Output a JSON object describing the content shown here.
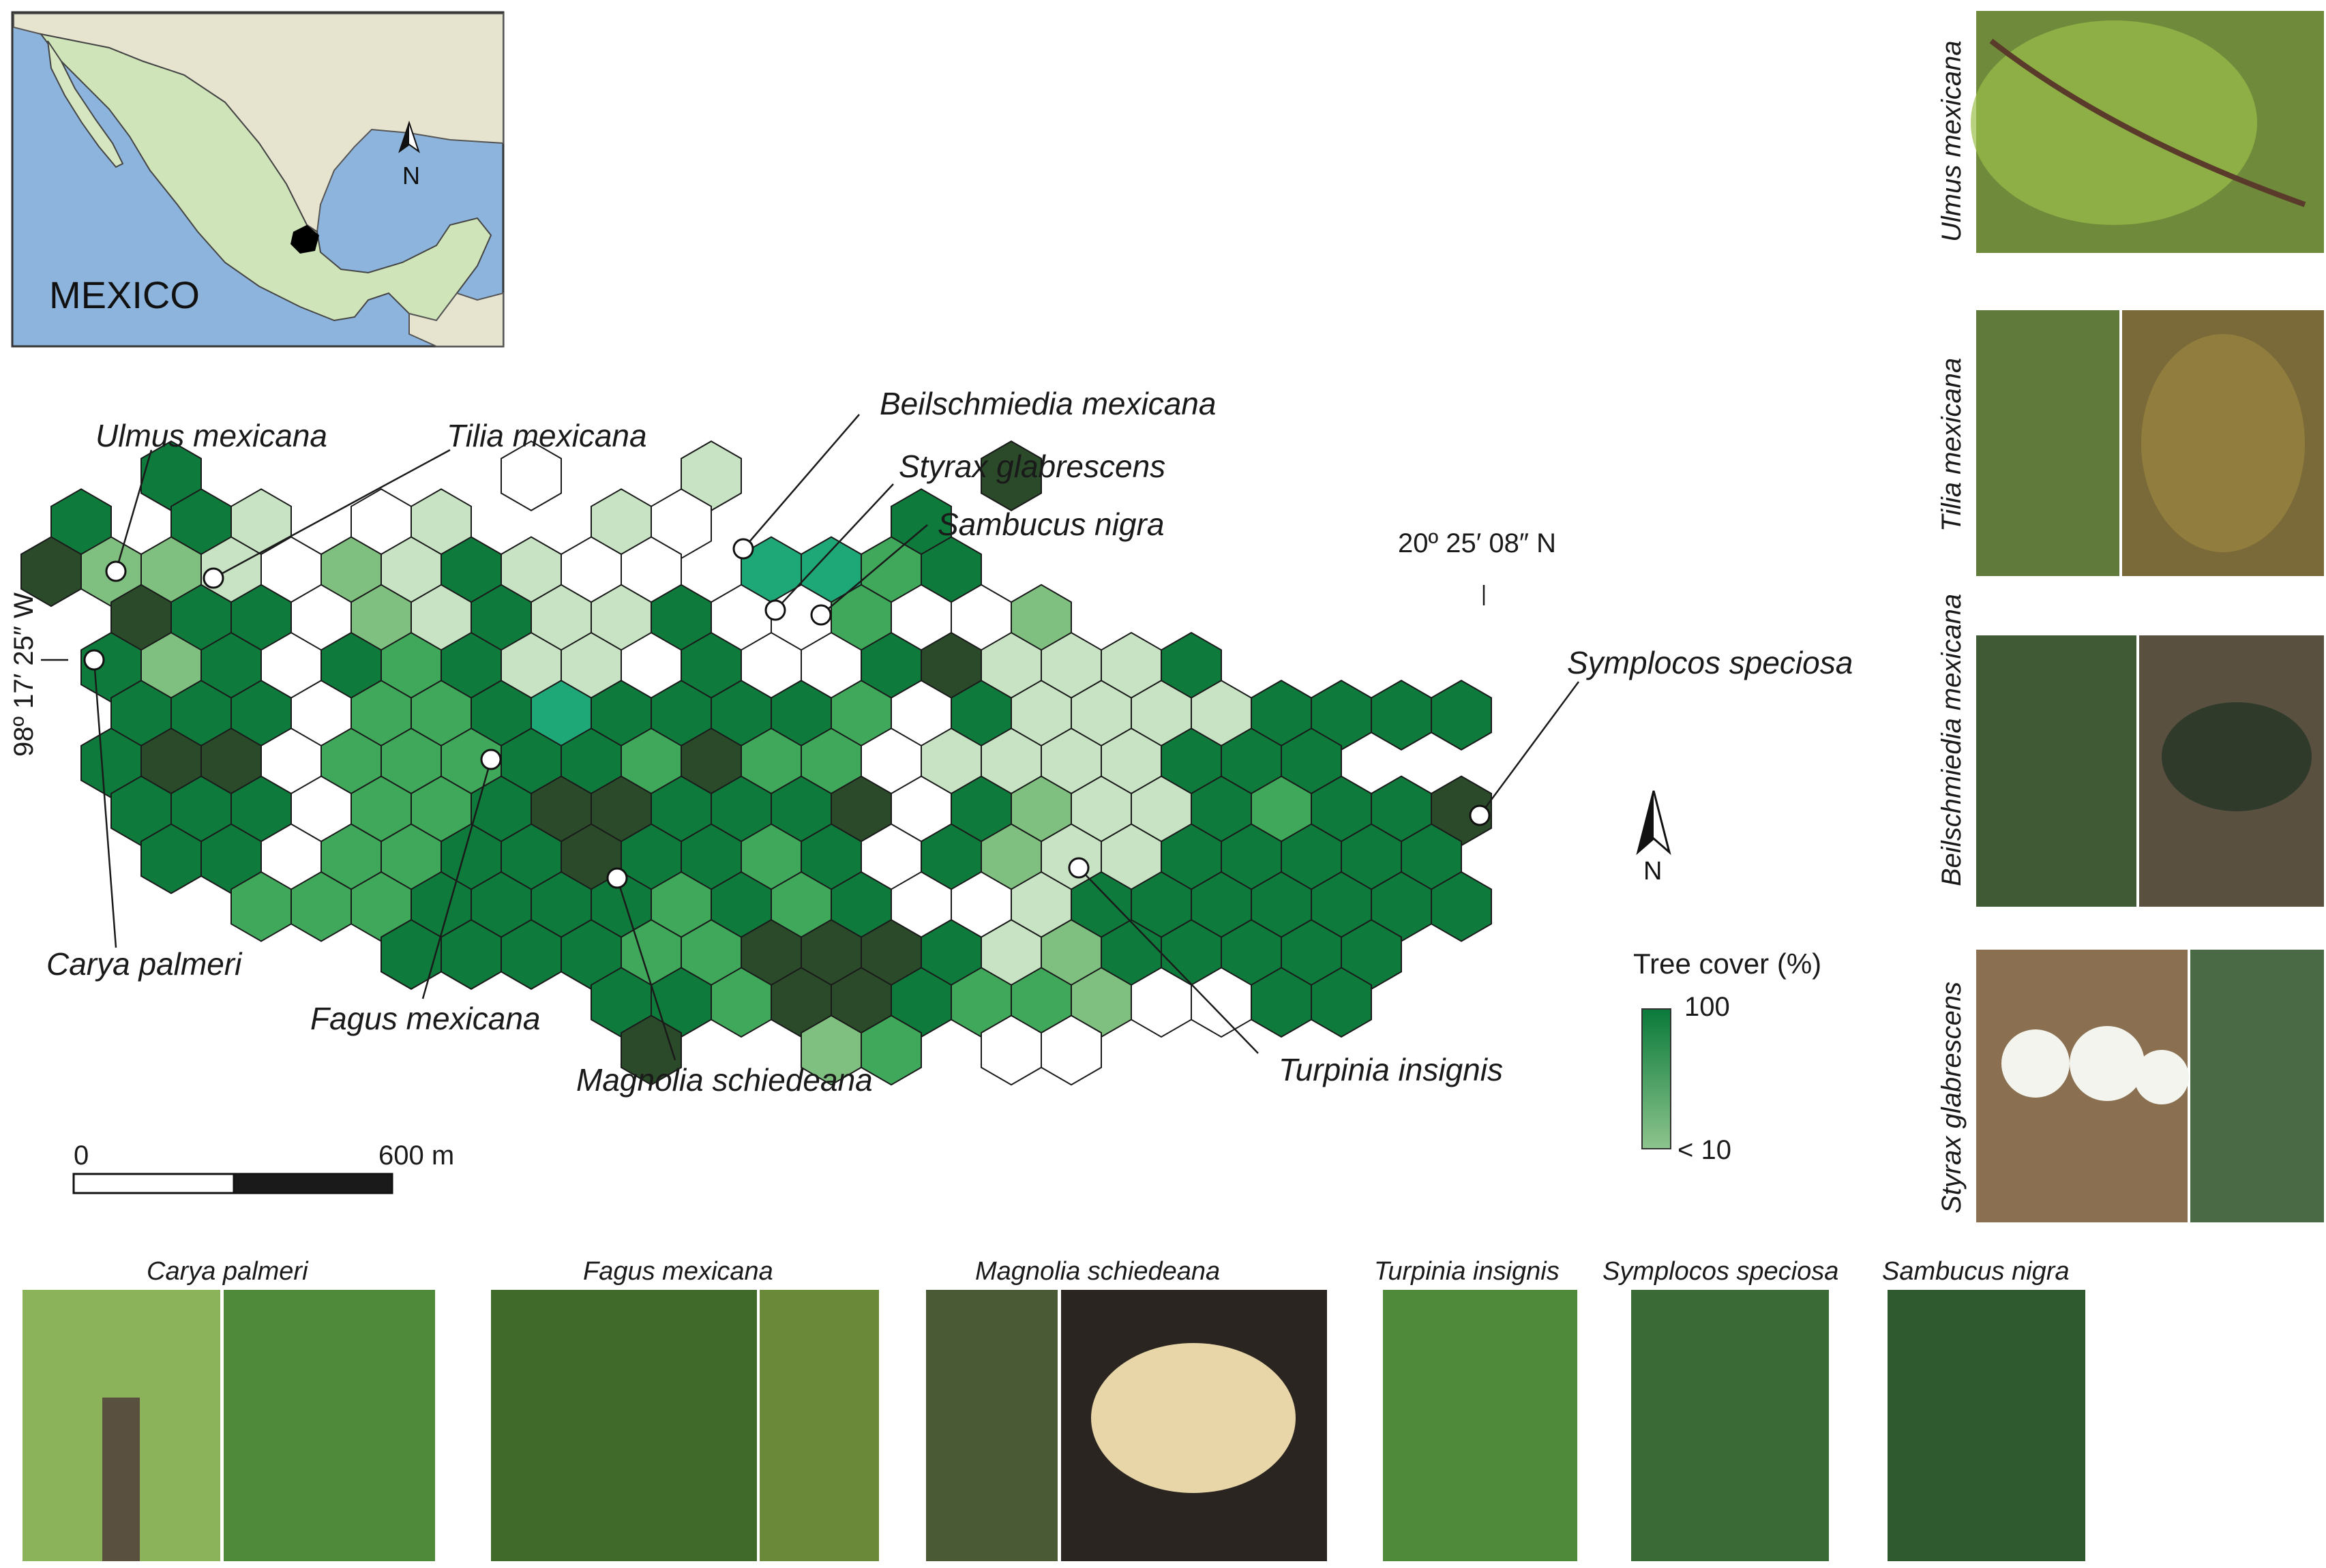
{
  "inset": {
    "country_label": "MEXICO",
    "north": "N"
  },
  "main_map": {
    "north": "N",
    "coord_lat": "20º 25′ 08″ N",
    "coord_lon": "98º 17′ 25″ W",
    "scale_start": "0",
    "scale_end": "600 m",
    "legend": {
      "title": "Tree cover (%)",
      "max": "100",
      "min": "< 10"
    },
    "species_labels": [
      "Ulmus mexicana",
      "Tilia mexicana",
      "Beilschmiedia mexicana",
      "Styrax glabrescens",
      "Sambucus nigra",
      "Symplocos speciosa",
      "Carya palmeri",
      "Fagus mexicana",
      "Magnolia schiedeana",
      "Turpinia insignis"
    ]
  },
  "photos_right": [
    "Ulmus mexicana",
    "Tilia mexicana",
    "Beilschmiedia mexicana",
    "Styrax glabrescens"
  ],
  "photos_bottom": [
    "Carya palmeri",
    "Fagus mexicana",
    "Magnolia schiedeana",
    "Turpinia insignis",
    "Symplocos speciosa",
    "Sambucus nigra"
  ],
  "colors": {
    "dark": "#2a4a2a",
    "forest": "#0e7a3c",
    "mid": "#3fa85a",
    "light": "#7fbf7f",
    "pale": "#c8e2c4",
    "none": "#ffffff",
    "teal": "#1fa877"
  }
}
